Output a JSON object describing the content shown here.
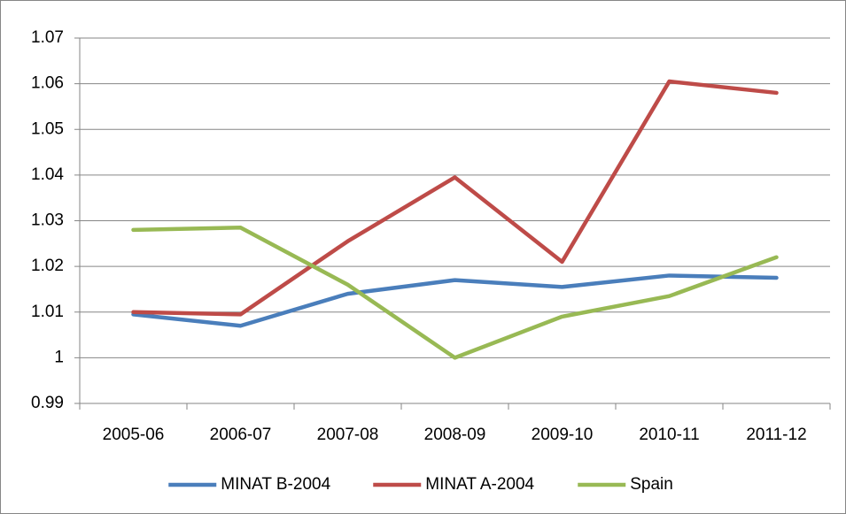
{
  "chart_data": {
    "type": "line",
    "categories": [
      "2005-06",
      "2006-07",
      "2007-08",
      "2008-09",
      "2009-10",
      "2010-11",
      "2011-12"
    ],
    "series": [
      {
        "name": "MINAT B-2004",
        "color": "#4a7ebb",
        "values": [
          1.0095,
          1.007,
          1.014,
          1.017,
          1.0155,
          1.018,
          1.0175
        ]
      },
      {
        "name": "MINAT A-2004",
        "color": "#be4b48",
        "values": [
          1.01,
          1.0095,
          1.0255,
          1.0395,
          1.021,
          1.0605,
          1.058
        ]
      },
      {
        "name": "Spain",
        "color": "#98b954",
        "values": [
          1.028,
          1.0285,
          1.016,
          1.0,
          1.009,
          1.0135,
          1.022
        ]
      }
    ],
    "ylim": [
      0.99,
      1.07
    ],
    "yticks": [
      0.99,
      1,
      1.01,
      1.02,
      1.03,
      1.04,
      1.05,
      1.06,
      1.07
    ],
    "grid": true,
    "legend": "bottom"
  }
}
